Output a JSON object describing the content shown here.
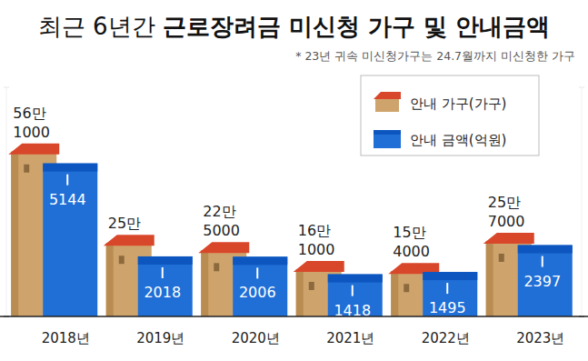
{
  "chart_data": {
    "type": "bar",
    "title": "최근 6년간 근로장려금 미신청 가구 및 안내금액",
    "subtitle": "* 23년 귀속 미신청가구는 24.7월까지 미신청한 가구",
    "categories": [
      "2018년",
      "2019년",
      "2020년",
      "2021년",
      "2022년",
      "2023년"
    ],
    "series": [
      {
        "name": "안내 가구(가구)",
        "color": "#cfa46c",
        "values": [
          561000,
          250000,
          225000,
          161000,
          154000,
          257000
        ],
        "value_labels": [
          "56만\n1000",
          "25만",
          "22만\n5000",
          "16만\n1000",
          "15만\n4000",
          "25만\n7000"
        ]
      },
      {
        "name": "안내 금액(억원)",
        "color": "#1f6fd6",
        "axis": "y2",
        "values": [
          5144,
          2018,
          2006,
          1418,
          1495,
          2397
        ]
      }
    ],
    "ylim": [
      0,
      780000
    ],
    "yticks": [
      0,
      780000
    ],
    "y2lim": [
      0,
      7700
    ],
    "y2ticks": [
      0,
      7700
    ],
    "tick_labels": false,
    "data_labels": true,
    "grid": false,
    "legend": "top-right"
  }
}
